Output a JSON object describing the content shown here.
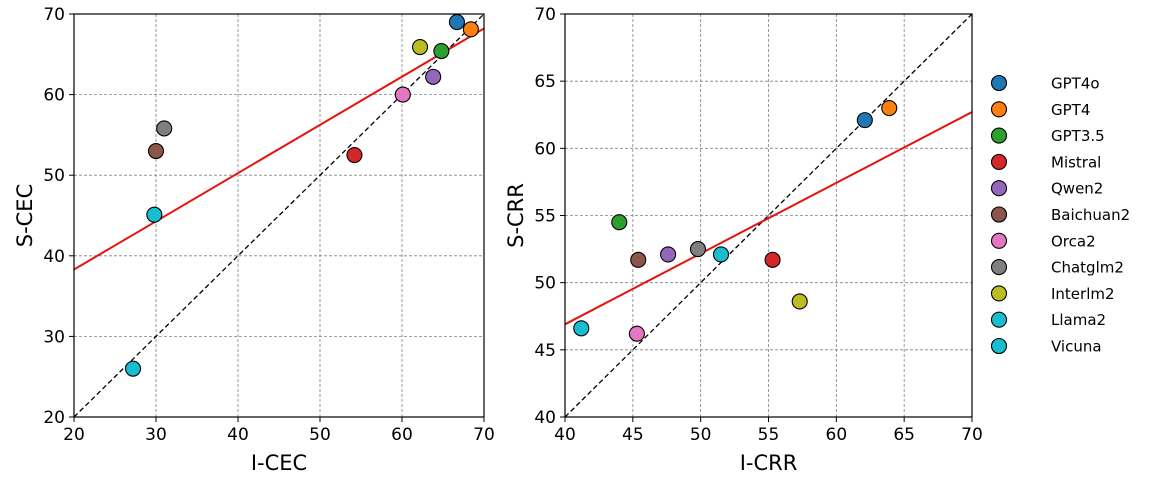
{
  "chart_data": [
    {
      "type": "scatter",
      "xlabel": "I-CEC",
      "ylabel": "S-CEC",
      "xlim": [
        20,
        70
      ],
      "ylim": [
        20,
        70
      ],
      "xticks": [
        "20",
        "30",
        "40",
        "50",
        "60",
        "70"
      ],
      "yticks": [
        "20",
        "30",
        "40",
        "50",
        "60",
        "70"
      ],
      "grid": true,
      "reference_line": "y = x",
      "fit_line": [
        [
          20,
          38.3
        ],
        [
          70,
          68.2
        ]
      ],
      "points": [
        {
          "x": 66.7,
          "y": 69.0,
          "color": "#1f77b4"
        },
        {
          "x": 68.4,
          "y": 68.1,
          "color": "#ff7f0e"
        },
        {
          "x": 64.8,
          "y": 65.4,
          "color": "#2ca02c"
        },
        {
          "x": 54.2,
          "y": 52.5,
          "color": "#d62728"
        },
        {
          "x": 63.8,
          "y": 62.2,
          "color": "#9467bd"
        },
        {
          "x": 30.0,
          "y": 53.0,
          "color": "#8c564b"
        },
        {
          "x": 60.1,
          "y": 60.0,
          "color": "#e377c2"
        },
        {
          "x": 31.0,
          "y": 55.8,
          "color": "#7f7f7f"
        },
        {
          "x": 62.2,
          "y": 65.9,
          "color": "#bcbd22"
        },
        {
          "x": 29.8,
          "y": 45.1,
          "color": "#17becf"
        },
        {
          "x": 27.2,
          "y": 26.0,
          "color": "#17becf"
        }
      ]
    },
    {
      "type": "scatter",
      "xlabel": "I-CRR",
      "ylabel": "S-CRR",
      "xlim": [
        40,
        70
      ],
      "ylim": [
        40,
        70
      ],
      "xticks": [
        "40",
        "45",
        "50",
        "55",
        "60",
        "65",
        "70"
      ],
      "yticks": [
        "40",
        "45",
        "50",
        "55",
        "60",
        "65",
        "70"
      ],
      "grid": true,
      "reference_line": "y = x",
      "fit_line": [
        [
          40,
          46.9
        ],
        [
          70,
          62.7
        ]
      ],
      "points": [
        {
          "x": 62.1,
          "y": 62.1,
          "color": "#1f77b4"
        },
        {
          "x": 63.9,
          "y": 63.0,
          "color": "#ff7f0e"
        },
        {
          "x": 44.0,
          "y": 54.5,
          "color": "#2ca02c"
        },
        {
          "x": 55.3,
          "y": 51.7,
          "color": "#d62728"
        },
        {
          "x": 47.6,
          "y": 52.1,
          "color": "#9467bd"
        },
        {
          "x": 45.4,
          "y": 51.7,
          "color": "#8c564b"
        },
        {
          "x": 45.3,
          "y": 46.2,
          "color": "#e377c2"
        },
        {
          "x": 49.8,
          "y": 52.5,
          "color": "#7f7f7f"
        },
        {
          "x": 57.3,
          "y": 48.6,
          "color": "#bcbd22"
        },
        {
          "x": 51.5,
          "y": 52.1,
          "color": "#17becf"
        },
        {
          "x": 41.2,
          "y": 46.6,
          "color": "#17becf"
        }
      ]
    }
  ],
  "legend": {
    "placement": "right",
    "entries": [
      {
        "label": "GPT4o",
        "color": "#1f77b4"
      },
      {
        "label": "GPT4",
        "color": "#ff7f0e"
      },
      {
        "label": "GPT3.5",
        "color": "#2ca02c"
      },
      {
        "label": "Mistral",
        "color": "#d62728"
      },
      {
        "label": "Qwen2",
        "color": "#9467bd"
      },
      {
        "label": "Baichuan2",
        "color": "#8c564b"
      },
      {
        "label": "Orca2",
        "color": "#e377c2"
      },
      {
        "label": "Chatglm2",
        "color": "#7f7f7f"
      },
      {
        "label": "Interlm2",
        "color": "#bcbd22"
      },
      {
        "label": "Llama2",
        "color": "#17becf"
      },
      {
        "label": "Vicuna",
        "color": "#17becf"
      }
    ]
  }
}
